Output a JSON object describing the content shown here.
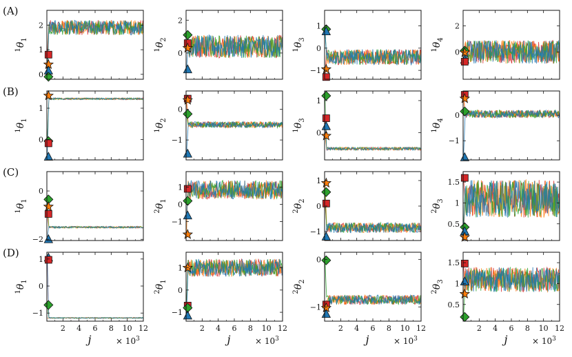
{
  "figure": {
    "row_labels": [
      "(A)",
      "(B)",
      "(C)",
      "(D)"
    ],
    "xlabel": "j",
    "x_multiplier": "× 10",
    "x_multiplier_exp": "3",
    "x_ticks": [
      2,
      4,
      6,
      8,
      10,
      12
    ],
    "x_range": [
      0,
      12
    ],
    "chain_colors": [
      "#1f77b4",
      "#ff7f0e",
      "#2ca02c",
      "#d62728"
    ],
    "marker_colors": {
      "square": "#d62728",
      "star": "#ff7f0e",
      "diamond": "#2ca02c",
      "triangle": "#1f77b4"
    }
  },
  "chart_data": [
    {
      "type": "line",
      "row": 0,
      "col": 0,
      "ylabel_sup": "1",
      "ylabel_sub": "1",
      "ylim": [
        -0.2,
        2.6
      ],
      "yticks": [
        0,
        1,
        2
      ],
      "stationary": {
        "center": 1.9,
        "halfwidth": 0.3
      },
      "markers": {
        "square": 0.8,
        "star": 0.4,
        "triangle": 0.15,
        "diamond": -0.1
      }
    },
    {
      "type": "line",
      "row": 0,
      "col": 1,
      "ylabel_sup": "1",
      "ylabel_sub": "2",
      "ylim": [
        -1.6,
        2.6
      ],
      "yticks": [
        0,
        2
      ],
      "stationary": {
        "center": 0.4,
        "halfwidth": 0.7
      },
      "markers": {
        "diamond": 1.1,
        "square": 0.6,
        "star": 0.3,
        "triangle": -1.0
      }
    },
    {
      "type": "line",
      "row": 0,
      "col": 2,
      "ylabel_sup": "1",
      "ylabel_sub": "3",
      "ylim": [
        -1.4,
        1.7
      ],
      "yticks": [
        -1,
        0,
        1
      ],
      "stationary": {
        "center": -0.4,
        "halfwidth": 0.35
      },
      "markers": {
        "diamond": 0.85,
        "triangle": 0.75,
        "star": -0.95,
        "square": -1.3
      }
    },
    {
      "type": "line",
      "row": 0,
      "col": 3,
      "ylabel_sup": "1",
      "ylabel_sub": "4",
      "ylim": [
        -2.1,
        3.2
      ],
      "yticks": [
        0,
        2
      ],
      "stationary": {
        "center": 0.0,
        "halfwidth": 0.9
      },
      "markers": {
        "diamond": 0.1,
        "star": -0.05,
        "triangle": -0.6,
        "square": -0.75
      }
    },
    {
      "type": "line",
      "row": 1,
      "col": 0,
      "ylabel_sup": "1",
      "ylabel_sub": "1",
      "ylim": [
        -0.65,
        1.55
      ],
      "yticks": [
        0,
        1
      ],
      "stationary": {
        "center": 1.3,
        "halfwidth": 0.03
      },
      "markers": {
        "star": 1.4,
        "diamond": -0.05,
        "square": -0.12,
        "triangle": -0.55
      }
    },
    {
      "type": "line",
      "row": 1,
      "col": 1,
      "ylabel_sup": "1",
      "ylabel_sub": "2",
      "ylim": [
        -1.65,
        0.6
      ],
      "yticks": [
        -1,
        0
      ],
      "stationary": {
        "center": -0.5,
        "halfwidth": 0.1
      },
      "markers": {
        "square": 0.35,
        "star": 0.3,
        "diamond": -0.15,
        "triangle": -1.45
      }
    },
    {
      "type": "line",
      "row": 1,
      "col": 2,
      "ylabel_sup": "1",
      "ylabel_sub": "3",
      "ylim": [
        -0.85,
        1.3
      ],
      "yticks": [
        0,
        1
      ],
      "stationary": {
        "center": -0.5,
        "halfwidth": 0.05
      },
      "markers": {
        "diamond": 1.15,
        "square": 0.45,
        "triangle": 0.2,
        "star": -0.1
      }
    },
    {
      "type": "line",
      "row": 1,
      "col": 3,
      "ylabel_sup": "1",
      "ylabel_sub": "4",
      "ylim": [
        -1.75,
        0.95
      ],
      "yticks": [
        -1,
        0
      ],
      "stationary": {
        "center": 0.05,
        "halfwidth": 0.15
      },
      "markers": {
        "square": 0.8,
        "star": 0.65,
        "diamond": 0.15,
        "triangle": -1.65
      }
    },
    {
      "type": "line",
      "row": 2,
      "col": 0,
      "ylabel_sup": "1",
      "ylabel_sub": "1",
      "ylim": [
        -2.05,
        0.8
      ],
      "yticks": [
        -2,
        0
      ],
      "stationary": {
        "center": -1.5,
        "halfwidth": 0.04
      },
      "markers": {
        "diamond": -0.35,
        "star": -0.65,
        "square": -0.95,
        "triangle": -2.0
      }
    },
    {
      "type": "line",
      "row": 2,
      "col": 1,
      "ylabel_sup": "2",
      "ylabel_sub": "1",
      "ylim": [
        -2.1,
        1.9
      ],
      "yticks": [
        -1,
        0,
        1
      ],
      "stationary": {
        "center": 0.85,
        "halfwidth": 0.55
      },
      "markers": {
        "square": 0.9,
        "diamond": 0.2,
        "triangle": -0.65,
        "star": -1.75
      }
    },
    {
      "type": "line",
      "row": 2,
      "col": 2,
      "ylabel_sup": "2",
      "ylabel_sub": "2",
      "ylim": [
        -1.35,
        1.35
      ],
      "yticks": [
        -1,
        0,
        1
      ],
      "stationary": {
        "center": -0.85,
        "halfwidth": 0.2
      },
      "markers": {
        "star": 0.9,
        "diamond": 0.55,
        "square": 0.1,
        "triangle": -1.2
      }
    },
    {
      "type": "line",
      "row": 2,
      "col": 3,
      "ylabel_sup": "2",
      "ylabel_sub": "3",
      "ylim": [
        0.1,
        1.75
      ],
      "yticks": [
        0.5,
        1.0,
        1.5
      ],
      "stationary": {
        "center": 1.1,
        "halfwidth": 0.45
      },
      "markers": {
        "square": 1.6,
        "diamond": 0.42,
        "triangle": 0.32,
        "star": 0.18
      }
    },
    {
      "type": "line",
      "row": 3,
      "col": 0,
      "ylabel_sup": "1",
      "ylabel_sub": "1",
      "ylim": [
        -1.3,
        1.25
      ],
      "yticks": [
        -1,
        0,
        1
      ],
      "stationary": {
        "center": -1.18,
        "halfwidth": 0.02
      },
      "markers": {
        "triangle": 1.05,
        "square": 0.97,
        "diamond": -0.7
      }
    },
    {
      "type": "line",
      "row": 3,
      "col": 1,
      "ylabel_sup": "2",
      "ylabel_sub": "1",
      "ylim": [
        -1.4,
        1.7
      ],
      "yticks": [
        -1,
        0,
        1
      ],
      "stationary": {
        "center": 1.0,
        "halfwidth": 0.4
      },
      "markers": {
        "star": 1.0,
        "square": -0.7,
        "diamond": -0.8,
        "triangle": -1.15
      }
    },
    {
      "type": "line",
      "row": 3,
      "col": 2,
      "ylabel_sup": "2",
      "ylabel_sub": "2",
      "ylim": [
        -1.3,
        0.15
      ],
      "yticks": [
        -1,
        0
      ],
      "stationary": {
        "center": -0.85,
        "halfwidth": 0.1
      },
      "markers": {
        "diamond": -0.02,
        "square": -0.95,
        "star": -1.02,
        "triangle": -1.15
      }
    },
    {
      "type": "line",
      "row": 3,
      "col": 3,
      "ylabel_sup": "2",
      "ylabel_sub": "3",
      "ylim": [
        0.1,
        1.75
      ],
      "yticks": [
        0.5,
        1.0,
        1.5
      ],
      "stationary": {
        "center": 1.1,
        "halfwidth": 0.3
      },
      "markers": {
        "square": 1.48,
        "triangle": 1.05,
        "star": 0.75,
        "diamond": 0.2
      }
    }
  ]
}
